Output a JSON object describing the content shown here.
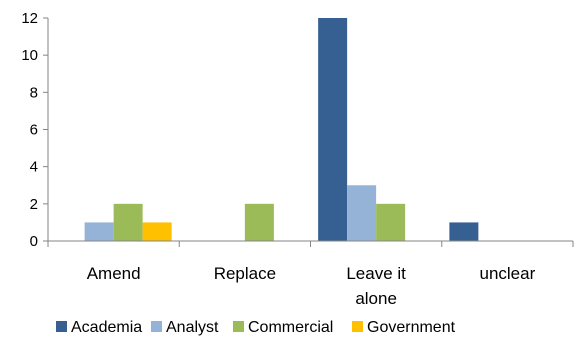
{
  "chart_data": {
    "type": "bar",
    "categories": [
      [
        "Amend"
      ],
      [
        "Replace"
      ],
      [
        "Leave it",
        "alone"
      ],
      [
        "unclear"
      ]
    ],
    "series": [
      {
        "name": "Academia",
        "color": "#376092",
        "values": [
          0,
          0,
          12,
          1
        ]
      },
      {
        "name": "Analyst",
        "color": "#95b3d7",
        "values": [
          1,
          0,
          3,
          0
        ]
      },
      {
        "name": "Commercial",
        "color": "#9bbb59",
        "values": [
          2,
          2,
          2,
          0
        ]
      },
      {
        "name": "Government",
        "color": "#ffc000",
        "values": [
          1,
          0,
          0,
          0
        ]
      }
    ],
    "ylim": [
      0,
      12
    ],
    "yticks": [
      0,
      2,
      4,
      6,
      8,
      10,
      12
    ],
    "grid": false,
    "legend_position": "bottom"
  }
}
